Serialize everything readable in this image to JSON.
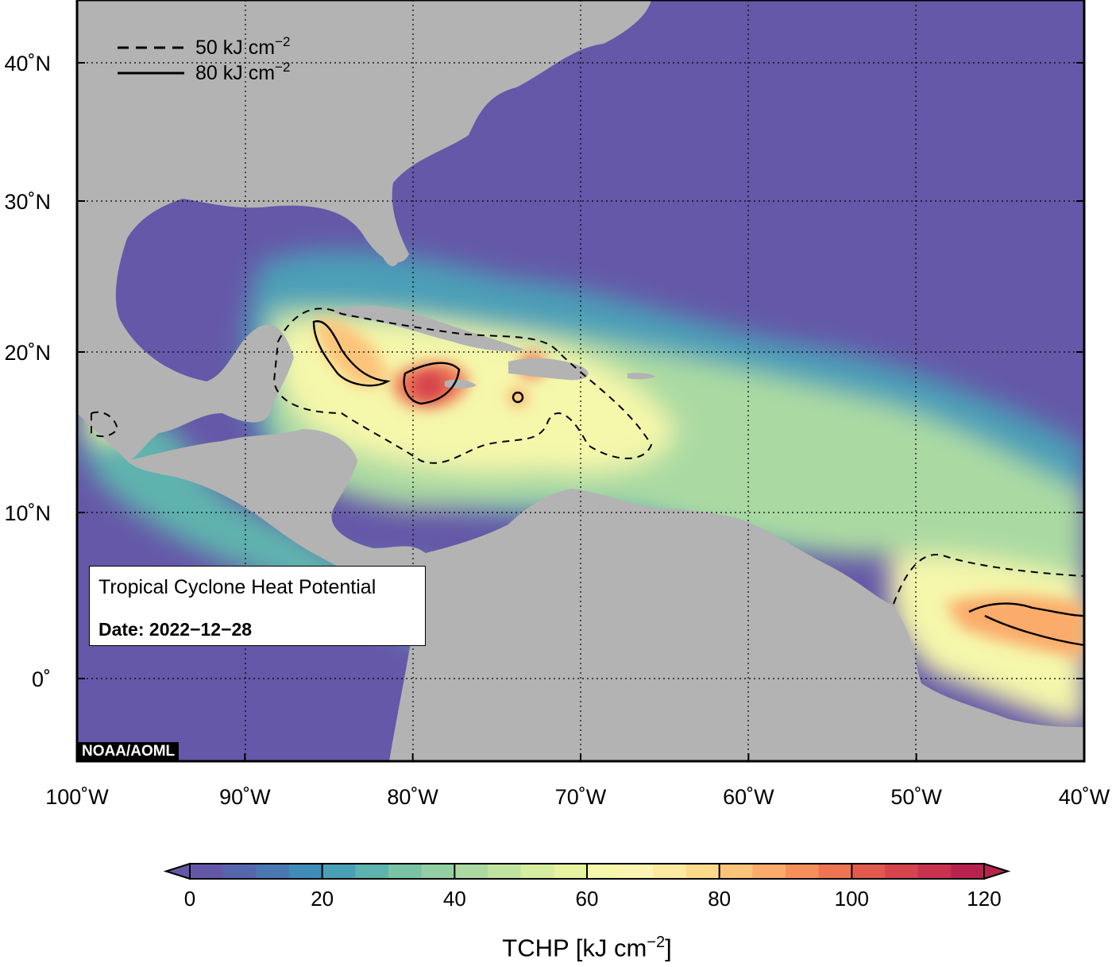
{
  "map": {
    "lon_range": [
      -100,
      -40
    ],
    "lat_range": [
      -5,
      44
    ],
    "grid": true,
    "lon_ticks": [
      {
        "value": -100,
        "label": "100˚W"
      },
      {
        "value": -90,
        "label": "90˚W"
      },
      {
        "value": -80,
        "label": "80˚W"
      },
      {
        "value": -70,
        "label": "70˚W"
      },
      {
        "value": -60,
        "label": "60˚W"
      },
      {
        "value": -50,
        "label": "50˚W"
      },
      {
        "value": -40,
        "label": "40˚W"
      }
    ],
    "lat_ticks": [
      {
        "value": 40,
        "label": "40˚N"
      },
      {
        "value": 30,
        "label": "30˚N"
      },
      {
        "value": 20,
        "label": "20˚N"
      },
      {
        "value": 10,
        "label": "10˚N"
      },
      {
        "value": 0,
        "label": "0˚"
      }
    ],
    "colors": {
      "land": "#b3b3b3",
      "ocean_low": "#6558a8",
      "frame": "#000000"
    }
  },
  "legend": {
    "entries": [
      {
        "style": "dashed",
        "label": "50 kJ cm",
        "sup": "−2"
      },
      {
        "style": "solid",
        "label": "80 kJ cm",
        "sup": "−2"
      }
    ]
  },
  "title_box": {
    "title": "Tropical Cyclone Heat Potential",
    "date": "Date: 2022−12−28"
  },
  "credit": "NOAA/AOML",
  "colorbar": {
    "min": 0,
    "max": 120,
    "step": 5,
    "tick_labels": [
      {
        "value": 0,
        "label": "0"
      },
      {
        "value": 20,
        "label": "20"
      },
      {
        "value": 40,
        "label": "40"
      },
      {
        "value": 60,
        "label": "60"
      },
      {
        "value": 80,
        "label": "80"
      },
      {
        "value": 100,
        "label": "100"
      },
      {
        "value": 120,
        "label": "120"
      }
    ],
    "title_main": "TCHP [kJ cm",
    "title_sup": "−2",
    "title_end": "]",
    "colors": [
      "#6457a7",
      "#5666ad",
      "#4a78b3",
      "#3f8cba",
      "#4b9fb7",
      "#5fb3ae",
      "#78c3a6",
      "#92cfa2",
      "#aadaa2",
      "#c1e3a0",
      "#d6ec9e",
      "#e8f39f",
      "#f5f7ab",
      "#fbf4b2",
      "#fde9a0",
      "#fdd98b",
      "#fcc47a",
      "#fbab6b",
      "#f78f5c",
      "#ef7452",
      "#e25a4d",
      "#d6444d",
      "#c8324e",
      "#b8234e"
    ]
  }
}
